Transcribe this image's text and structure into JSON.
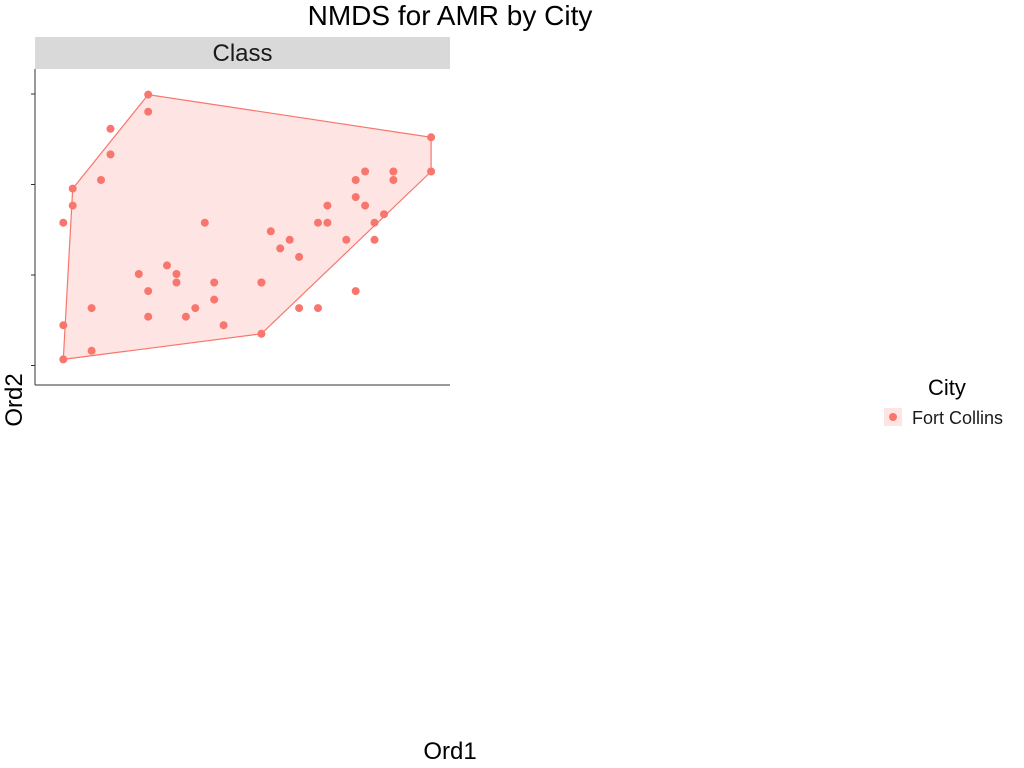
{
  "chart_data": {
    "type": "scatter",
    "title": "NMDS for AMR by City",
    "xlabel": "Ord1",
    "ylabel": "Ord2",
    "facets": [
      {
        "label": "Class",
        "points": [
          [
            0.31,
            0.06
          ],
          [
            0.31,
            0.1
          ],
          [
            0.34,
            0.07
          ],
          [
            0.47,
            0.13
          ],
          [
            0.47,
            0.15
          ],
          [
            0.48,
            0.1
          ],
          [
            0.52,
            0.09
          ],
          [
            0.45,
            0.12
          ],
          [
            0.44,
            0.11
          ],
          [
            0.4,
            0.11
          ],
          [
            0.4,
            0.14
          ],
          [
            0.34,
            0.12
          ],
          [
            0.39,
            0.16
          ],
          [
            0.42,
            0.17
          ],
          [
            0.43,
            0.15
          ],
          [
            0.43,
            0.16
          ],
          [
            0.46,
            0.22
          ],
          [
            0.53,
            0.21
          ],
          [
            0.54,
            0.19
          ],
          [
            0.55,
            0.2
          ],
          [
            0.56,
            0.18
          ],
          [
            0.52,
            0.15
          ],
          [
            0.58,
            0.22
          ],
          [
            0.59,
            0.24
          ],
          [
            0.59,
            0.22
          ],
          [
            0.61,
            0.2
          ],
          [
            0.62,
            0.25
          ],
          [
            0.62,
            0.27
          ],
          [
            0.63,
            0.24
          ],
          [
            0.63,
            0.28
          ],
          [
            0.64,
            0.22
          ],
          [
            0.65,
            0.23
          ],
          [
            0.66,
            0.28
          ],
          [
            0.66,
            0.27
          ],
          [
            0.64,
            0.2
          ],
          [
            0.7,
            0.32
          ],
          [
            0.7,
            0.28
          ],
          [
            0.4,
            0.37
          ],
          [
            0.4,
            0.35
          ],
          [
            0.36,
            0.33
          ],
          [
            0.36,
            0.3
          ],
          [
            0.35,
            0.27
          ],
          [
            0.32,
            0.26
          ],
          [
            0.32,
            0.24
          ],
          [
            0.31,
            0.22
          ],
          [
            0.62,
            0.14
          ],
          [
            0.58,
            0.12
          ],
          [
            0.56,
            0.12
          ],
          [
            0.52,
            0.15
          ]
        ],
        "hull": [
          [
            0.31,
            0.06
          ],
          [
            0.52,
            0.09
          ],
          [
            0.7,
            0.28
          ],
          [
            0.7,
            0.32
          ],
          [
            0.4,
            0.37
          ],
          [
            0.32,
            0.26
          ]
        ]
      }
    ],
    "axes": {
      "xlim": [
        0.28,
        0.72
      ],
      "ylim": [
        0.03,
        0.4
      ],
      "grid": false
    },
    "legend": {
      "title": "City",
      "items": [
        {
          "label": "Fort Collins",
          "color": "#F8766D"
        }
      ],
      "position": "right"
    }
  }
}
